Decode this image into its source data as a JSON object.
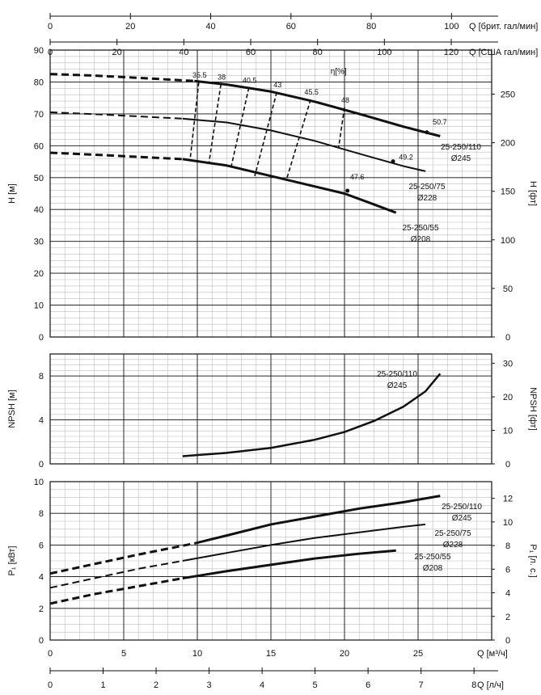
{
  "top_axes": {
    "q_imp": {
      "label": "Q [брит. гал/мин]",
      "ticks": [
        0,
        20,
        40,
        60,
        80,
        100
      ]
    },
    "q_us": {
      "label": "Q [США гал/мин]",
      "ticks": [
        0,
        20,
        40,
        60,
        80,
        100,
        120
      ]
    }
  },
  "bottom_axes": {
    "q_m3h": {
      "label": "Q [м³/ч]",
      "ticks": [
        0,
        5,
        10,
        15,
        20,
        25
      ]
    },
    "q_ls": {
      "label": "Q [л/ч]",
      "ticks": [
        0,
        1,
        2,
        3,
        4,
        5,
        6,
        7,
        8
      ]
    }
  },
  "chart_data": [
    {
      "type": "line",
      "id": "head",
      "ylabel": "H [м]",
      "y2label": "H [фт]",
      "xlim": [
        0,
        30
      ],
      "ylim": [
        0,
        90
      ],
      "y2lim": [
        0,
        295.3
      ],
      "yticks": [
        0,
        10,
        20,
        30,
        40,
        50,
        60,
        70,
        80,
        90
      ],
      "y2ticks": [
        0,
        50,
        100,
        150,
        200,
        250
      ],
      "grid": true,
      "efficiency_label": "η[%]",
      "series": [
        {
          "name": "25-250/110",
          "subtitle": "Ø245",
          "weight": "heavy",
          "dashed_x": [
            0,
            3,
            6,
            9.8
          ],
          "dashed_y": [
            82.5,
            82.0,
            81.3,
            80.3
          ],
          "x": [
            9.8,
            12,
            15,
            18,
            21,
            24,
            26.5
          ],
          "y": [
            80.3,
            79.2,
            77.0,
            73.8,
            70.0,
            66.0,
            63.0
          ]
        },
        {
          "name": "25-250/75",
          "subtitle": "Ø228",
          "weight": "medium",
          "dashed_x": [
            0,
            3,
            6,
            9
          ],
          "dashed_y": [
            70.5,
            69.9,
            69.2,
            68.5
          ],
          "x": [
            9,
            12,
            15,
            18,
            21,
            24,
            25.5
          ],
          "y": [
            68.5,
            67.3,
            64.8,
            61.5,
            57.5,
            53.6,
            52.0
          ]
        },
        {
          "name": "25-250/55",
          "subtitle": "Ø208",
          "weight": "heavy",
          "dashed_x": [
            0,
            3,
            6,
            9
          ],
          "dashed_y": [
            57.8,
            57.2,
            56.5,
            55.8
          ],
          "x": [
            9,
            12,
            15,
            18,
            20,
            22,
            23.5
          ],
          "y": [
            55.8,
            53.8,
            50.5,
            47.2,
            45.0,
            41.6,
            39.0
          ]
        }
      ],
      "efficiency_lines": [
        {
          "label": "35.5",
          "x": [
            10.1,
            9.5
          ],
          "y": [
            79.9,
            55.3
          ]
        },
        {
          "label": "38",
          "x": [
            11.6,
            10.8
          ],
          "y": [
            79.2,
            54.9
          ]
        },
        {
          "label": "40.5",
          "x": [
            13.5,
            12.3
          ],
          "y": [
            78.2,
            53.4
          ]
        },
        {
          "label": "43",
          "x": [
            15.4,
            13.9
          ],
          "y": [
            76.8,
            50.5
          ]
        },
        {
          "label": "45.5",
          "x": [
            17.7,
            16.1
          ],
          "y": [
            74.5,
            50.0
          ]
        },
        {
          "label": "48",
          "x": [
            20.0,
            19.6
          ],
          "y": [
            72.0,
            59.5
          ]
        }
      ],
      "efficiency_point_labels": [
        {
          "label": "50.7",
          "x": 25.6,
          "y": 64.2
        },
        {
          "label": "49.2",
          "x": 23.3,
          "y": 55.1
        },
        {
          "label": "47.6",
          "x": 20.2,
          "y": 45.9
        }
      ]
    },
    {
      "type": "line",
      "id": "npsh",
      "ylabel": "NPSH [м]",
      "y2label": "NPSH [фт]",
      "xlim": [
        0,
        30
      ],
      "ylim": [
        0,
        10
      ],
      "y2lim": [
        0,
        32.8
      ],
      "yticks": [
        0,
        4,
        8
      ],
      "y2ticks": [
        0,
        10,
        20,
        30
      ],
      "grid": true,
      "series": [
        {
          "name": "25-250/110",
          "subtitle": "Ø245",
          "x": [
            9,
            12,
            15,
            18,
            20,
            22,
            24,
            25.5,
            26.5
          ],
          "y": [
            0.7,
            1.0,
            1.45,
            2.2,
            2.9,
            3.9,
            5.2,
            6.6,
            8.2
          ]
        }
      ]
    },
    {
      "type": "line",
      "id": "power",
      "ylabel": "P₁ [кВт]",
      "y2label": "P₁ [л. с.]",
      "xlim": [
        0,
        30
      ],
      "ylim": [
        0,
        10
      ],
      "y2lim": [
        0,
        13.41
      ],
      "yticks": [
        0,
        2,
        4,
        6,
        8,
        10
      ],
      "y2ticks": [
        0,
        2,
        4,
        6,
        8,
        10,
        12
      ],
      "grid": true,
      "series": [
        {
          "name": "25-250/110",
          "subtitle": "Ø245",
          "weight": "heavy",
          "dashed_x": [
            0,
            3,
            6,
            9.8
          ],
          "dashed_y": [
            4.2,
            4.8,
            5.4,
            6.1
          ],
          "x": [
            9.8,
            12,
            15,
            18,
            21,
            24,
            26.5
          ],
          "y": [
            6.1,
            6.6,
            7.3,
            7.8,
            8.3,
            8.7,
            9.1
          ]
        },
        {
          "name": "25-250/75",
          "subtitle": "Ø228",
          "weight": "medium",
          "dashed_x": [
            0,
            3,
            6,
            9
          ],
          "dashed_y": [
            3.3,
            3.9,
            4.5,
            5.0
          ],
          "x": [
            9,
            12,
            15,
            18,
            21,
            24,
            25.5
          ],
          "y": [
            5.0,
            5.5,
            6.0,
            6.45,
            6.8,
            7.15,
            7.3
          ]
        },
        {
          "name": "25-250/55",
          "subtitle": "Ø208",
          "weight": "heavy",
          "dashed_x": [
            0,
            3,
            6,
            9
          ],
          "dashed_y": [
            2.3,
            2.9,
            3.4,
            3.9
          ],
          "x": [
            9,
            12,
            15,
            18,
            21,
            23.5
          ],
          "y": [
            3.9,
            4.35,
            4.75,
            5.15,
            5.45,
            5.65
          ]
        }
      ]
    }
  ]
}
